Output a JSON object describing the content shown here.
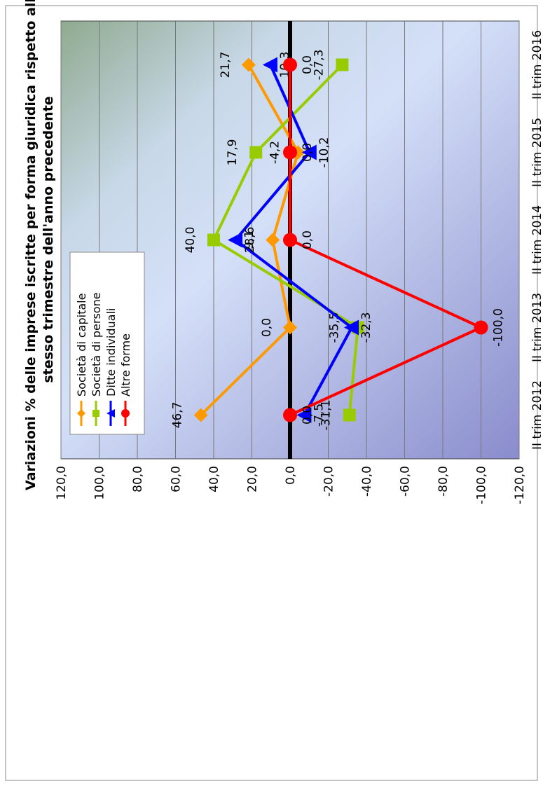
{
  "chart_data": {
    "type": "line",
    "title_line1": "Variazioni % delle imprese iscritte per forma giuridica rispetto allo",
    "title_line2": "stesso trimestre dell'anno precedente",
    "categories": [
      "II trim 2012",
      "II trim 2013",
      "II trim 2014",
      "II trim 2015",
      "II trim 2016"
    ],
    "ylim": [
      -120,
      120
    ],
    "yticks": [
      "120,0",
      "100,0",
      "80,0",
      "60,0",
      "40,0",
      "20,0",
      "0,0",
      "-20,0",
      "-40,0",
      "-60,0",
      "-80,0",
      "-100,0",
      "-120,0"
    ],
    "grid": true,
    "legend_position": "bottom-left",
    "series": [
      {
        "name": "Società di capitale",
        "color": "#ff9900",
        "marker": "diamond",
        "values": [
          46.7,
          0.0,
          9.1,
          -4.2,
          21.7
        ],
        "labels": [
          "46,7",
          "0,0",
          "9,1",
          "-4,2",
          "21,7"
        ]
      },
      {
        "name": "Società di persone",
        "color": "#99cc00",
        "marker": "square",
        "values": [
          -31.1,
          -35.5,
          40.0,
          17.9,
          -27.3
        ],
        "labels": [
          "-31,1",
          "-35,5",
          "40,0",
          "17,9",
          "-27,3"
        ]
      },
      {
        "name": "Ditte individuali",
        "color": "#0000ff",
        "marker": "triangle",
        "values": [
          -7.5,
          -32.3,
          28.6,
          -10.2,
          10.3
        ],
        "labels": [
          "-7,5",
          "-32,3",
          "28,6",
          "-10,2",
          "10,3"
        ]
      },
      {
        "name": "Altre forme",
        "color": "#ff0000",
        "marker": "circle",
        "values": [
          0.0,
          -100.0,
          0.0,
          0.0,
          0.0
        ],
        "labels": [
          "0,0",
          "-100,0",
          "0,0",
          "0,0",
          "0,0"
        ]
      }
    ]
  }
}
